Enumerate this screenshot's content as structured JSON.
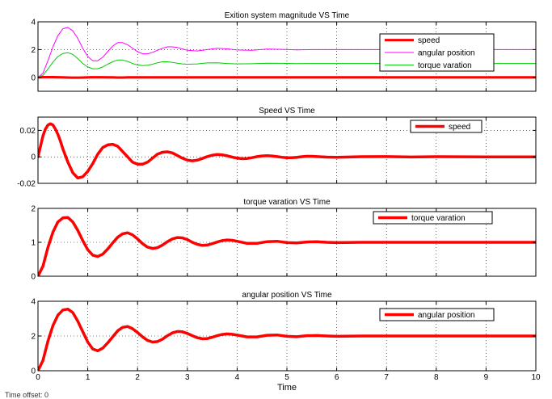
{
  "figure": {
    "footer_note": "Time offset:  0",
    "xlabel": "Time"
  },
  "colors": {
    "speed": "#ff0000",
    "angular_position": "#ff00ff",
    "torque_varation": "#00cc00",
    "axes": "#000000",
    "grid": "#000000"
  },
  "chart_data": [
    {
      "type": "line",
      "title": "Exition system magnitude VS Time",
      "xlabel": "",
      "ylabel": "",
      "xlim": [
        0,
        10
      ],
      "ylim": [
        -1,
        4
      ],
      "yticks": [
        0,
        2,
        4
      ],
      "xticks": [
        0,
        1,
        2,
        3,
        4,
        5,
        6,
        7,
        8,
        9,
        10
      ],
      "show_xtick_labels": false,
      "grid": true,
      "legend_position": "top-right",
      "x": [
        0,
        0.1,
        0.2,
        0.3,
        0.4,
        0.5,
        0.6,
        0.7,
        0.8,
        0.9,
        1.0,
        1.1,
        1.2,
        1.3,
        1.4,
        1.5,
        1.6,
        1.7,
        1.8,
        1.9,
        2.0,
        2.1,
        2.2,
        2.3,
        2.4,
        2.5,
        2.6,
        2.7,
        2.8,
        2.9,
        3.0,
        3.2,
        3.4,
        3.6,
        3.8,
        4.0,
        4.3,
        4.6,
        4.9,
        5.2,
        5.5,
        6.0,
        6.5,
        7.0,
        8.0,
        9.0,
        10.0
      ],
      "series": [
        {
          "name": "speed",
          "color": "#ff0000",
          "width": 3,
          "values": [
            0,
            0.02,
            0.02,
            0.02,
            0.01,
            0.0,
            -0.01,
            -0.02,
            -0.02,
            -0.01,
            0.0,
            0.01,
            0.01,
            0.01,
            0.0,
            0.0,
            -0.01,
            -0.01,
            0.0,
            0.0,
            0.0,
            0.0,
            0.0,
            0.0,
            0.0,
            0.0,
            0.0,
            0.0,
            0.0,
            0.0,
            0.0,
            0.0,
            0.0,
            0.0,
            0.0,
            0.0,
            0.0,
            0.0,
            0.0,
            0.0,
            0.0,
            0.0,
            0.0,
            0.0,
            0.0,
            0.0,
            0.0
          ]
        },
        {
          "name": "angular position",
          "color": "#ff00ff",
          "width": 1,
          "values": [
            0,
            0.3,
            1.2,
            2.2,
            3.0,
            3.5,
            3.6,
            3.35,
            2.8,
            2.1,
            1.5,
            1.2,
            1.2,
            1.45,
            1.85,
            2.25,
            2.5,
            2.5,
            2.35,
            2.1,
            1.85,
            1.7,
            1.7,
            1.8,
            1.95,
            2.1,
            2.2,
            2.2,
            2.15,
            2.05,
            1.95,
            1.9,
            2.0,
            2.1,
            2.05,
            1.97,
            1.95,
            2.04,
            2.02,
            1.98,
            2.0,
            2.0,
            2.0,
            2.0,
            2.0,
            2.0,
            2.0
          ]
        },
        {
          "name": "torque varation",
          "color": "#00cc00",
          "width": 1,
          "values": [
            0,
            0.15,
            0.6,
            1.1,
            1.5,
            1.72,
            1.78,
            1.65,
            1.35,
            1.0,
            0.75,
            0.62,
            0.62,
            0.75,
            0.95,
            1.12,
            1.25,
            1.25,
            1.15,
            1.0,
            0.9,
            0.85,
            0.87,
            0.95,
            1.05,
            1.12,
            1.12,
            1.08,
            1.02,
            0.97,
            0.95,
            0.97,
            1.04,
            1.05,
            1.0,
            0.97,
            0.98,
            1.02,
            1.01,
            0.99,
            1.0,
            1.0,
            1.0,
            1.0,
            1.0,
            1.0,
            1.0
          ]
        }
      ]
    },
    {
      "type": "line",
      "title": "Speed VS Time",
      "xlabel": "",
      "ylabel": "",
      "xlim": [
        0,
        10
      ],
      "ylim": [
        -0.02,
        0.03
      ],
      "yticks": [
        -0.02,
        0,
        0.02
      ],
      "ytick_labels": [
        "-0.02",
        "0",
        "0.02"
      ],
      "xticks": [
        0,
        1,
        2,
        3,
        4,
        5,
        6,
        7,
        8,
        9,
        10
      ],
      "show_xtick_labels": false,
      "grid": true,
      "legend_position": "top-right",
      "x": [
        0,
        0.05,
        0.1,
        0.15,
        0.2,
        0.25,
        0.3,
        0.35,
        0.4,
        0.45,
        0.5,
        0.6,
        0.7,
        0.8,
        0.9,
        1.0,
        1.1,
        1.2,
        1.3,
        1.4,
        1.5,
        1.6,
        1.7,
        1.8,
        1.9,
        2.0,
        2.1,
        2.2,
        2.3,
        2.4,
        2.5,
        2.6,
        2.7,
        2.8,
        2.9,
        3.0,
        3.1,
        3.2,
        3.3,
        3.4,
        3.5,
        3.6,
        3.7,
        3.8,
        3.9,
        4.0,
        4.1,
        4.2,
        4.3,
        4.4,
        4.5,
        4.6,
        4.7,
        4.8,
        4.9,
        5.0,
        5.1,
        5.2,
        5.3,
        5.4,
        5.5,
        5.6,
        5.8,
        6.0,
        6.5,
        7.0,
        7.5,
        8.0,
        9.0,
        10.0
      ],
      "series": [
        {
          "name": "speed",
          "color": "#ff0000",
          "width": 3.5,
          "values": [
            0,
            0.008,
            0.016,
            0.021,
            0.024,
            0.025,
            0.024,
            0.021,
            0.017,
            0.012,
            0.006,
            -0.004,
            -0.012,
            -0.016,
            -0.015,
            -0.011,
            -0.005,
            0.002,
            0.007,
            0.009,
            0.0095,
            0.008,
            0.004,
            0.0,
            -0.004,
            -0.0055,
            -0.0055,
            -0.004,
            -0.001,
            0.002,
            0.0035,
            0.0038,
            0.003,
            0.001,
            -0.001,
            -0.0025,
            -0.003,
            -0.0025,
            -0.0012,
            0.0002,
            0.0012,
            0.0018,
            0.0015,
            0.0008,
            -0.0002,
            -0.001,
            -0.0014,
            -0.0012,
            -0.0006,
            0.0002,
            0.0007,
            0.0009,
            0.0007,
            0.0002,
            -0.0003,
            -0.0006,
            -0.0006,
            -0.0003,
            0.0001,
            0.0004,
            0.0004,
            0.0002,
            -0.0002,
            -0.0003,
            0.0001,
            0.0002,
            -0.0001,
            0.0001,
            0.0,
            0.0
          ]
        }
      ]
    },
    {
      "type": "line",
      "title": "torque varation VS Time",
      "xlabel": "",
      "ylabel": "",
      "xlim": [
        0,
        10
      ],
      "ylim": [
        0,
        2
      ],
      "yticks": [
        0,
        1,
        2
      ],
      "xticks": [
        0,
        1,
        2,
        3,
        4,
        5,
        6,
        7,
        8,
        9,
        10
      ],
      "show_xtick_labels": false,
      "grid": true,
      "legend_position": "top-right",
      "x": [
        0,
        0.1,
        0.2,
        0.3,
        0.4,
        0.5,
        0.6,
        0.7,
        0.8,
        0.9,
        1.0,
        1.1,
        1.2,
        1.3,
        1.4,
        1.5,
        1.6,
        1.7,
        1.8,
        1.9,
        2.0,
        2.1,
        2.2,
        2.3,
        2.4,
        2.5,
        2.6,
        2.7,
        2.8,
        2.9,
        3.0,
        3.1,
        3.2,
        3.3,
        3.4,
        3.5,
        3.6,
        3.7,
        3.8,
        3.9,
        4.0,
        4.2,
        4.4,
        4.6,
        4.8,
        5.0,
        5.2,
        5.4,
        5.6,
        5.8,
        6.0,
        6.5,
        7.0,
        7.5,
        8.0,
        9.0,
        10.0
      ],
      "series": [
        {
          "name": "torque varation",
          "color": "#ff0000",
          "width": 3.5,
          "values": [
            0,
            0.3,
            0.85,
            1.3,
            1.6,
            1.72,
            1.73,
            1.6,
            1.35,
            1.05,
            0.78,
            0.62,
            0.58,
            0.65,
            0.8,
            0.98,
            1.15,
            1.25,
            1.28,
            1.22,
            1.1,
            0.96,
            0.86,
            0.82,
            0.84,
            0.92,
            1.02,
            1.1,
            1.14,
            1.13,
            1.08,
            1.0,
            0.94,
            0.91,
            0.92,
            0.96,
            1.01,
            1.05,
            1.07,
            1.06,
            1.03,
            0.97,
            0.97,
            1.02,
            1.03,
            0.99,
            0.98,
            1.01,
            1.02,
            1.0,
            0.99,
            1.0,
            1.0,
            1.0,
            1.0,
            1.0,
            1.0
          ]
        }
      ]
    },
    {
      "type": "line",
      "title": "angular position VS Time",
      "xlabel": "Time",
      "ylabel": "",
      "xlim": [
        0,
        10
      ],
      "ylim": [
        0,
        4
      ],
      "yticks": [
        0,
        2,
        4
      ],
      "xticks": [
        0,
        1,
        2,
        3,
        4,
        5,
        6,
        7,
        8,
        9,
        10
      ],
      "show_xtick_labels": true,
      "grid": true,
      "legend_position": "top-right",
      "x": [
        0,
        0.1,
        0.2,
        0.3,
        0.4,
        0.5,
        0.6,
        0.7,
        0.8,
        0.9,
        1.0,
        1.1,
        1.2,
        1.3,
        1.4,
        1.5,
        1.6,
        1.7,
        1.8,
        1.9,
        2.0,
        2.1,
        2.2,
        2.3,
        2.4,
        2.5,
        2.6,
        2.7,
        2.8,
        2.9,
        3.0,
        3.1,
        3.2,
        3.3,
        3.4,
        3.5,
        3.6,
        3.7,
        3.8,
        3.9,
        4.0,
        4.2,
        4.4,
        4.6,
        4.8,
        5.0,
        5.2,
        5.4,
        5.6,
        5.8,
        6.0,
        6.5,
        7.0,
        7.5,
        8.0,
        9.0,
        10.0
      ],
      "series": [
        {
          "name": "angular position",
          "color": "#ff0000",
          "width": 3.5,
          "values": [
            0,
            0.6,
            1.7,
            2.6,
            3.2,
            3.5,
            3.55,
            3.35,
            2.85,
            2.25,
            1.65,
            1.25,
            1.15,
            1.3,
            1.6,
            1.95,
            2.3,
            2.5,
            2.55,
            2.42,
            2.2,
            1.95,
            1.75,
            1.65,
            1.68,
            1.82,
            2.02,
            2.18,
            2.26,
            2.24,
            2.15,
            2.02,
            1.9,
            1.84,
            1.85,
            1.93,
            2.02,
            2.09,
            2.12,
            2.1,
            2.05,
            1.95,
            1.95,
            2.04,
            2.06,
            1.98,
            1.96,
            2.02,
            2.03,
            2.0,
            1.98,
            2.0,
            2.0,
            2.0,
            2.0,
            2.0,
            2.0
          ]
        }
      ]
    }
  ]
}
